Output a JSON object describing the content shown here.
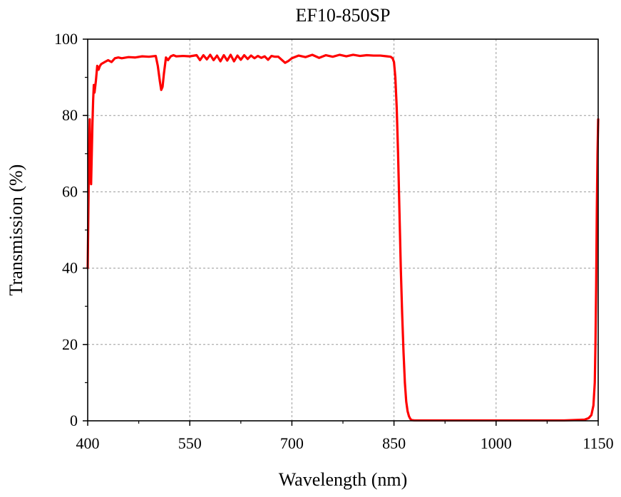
{
  "chart_data": {
    "type": "line",
    "title": "EF10-850SP",
    "xlabel": "Wavelength (nm)",
    "ylabel": "Transmission (%)",
    "xlim": [
      400,
      1150
    ],
    "ylim": [
      0,
      100
    ],
    "xticks": [
      400,
      550,
      700,
      850,
      1000,
      1150
    ],
    "yticks": [
      0,
      20,
      40,
      60,
      80,
      100
    ],
    "grid": true,
    "series": [
      {
        "color": "#ff0000",
        "x": [
          400,
          401,
          402,
          403,
          404,
          405,
          406,
          407,
          408,
          409,
          410,
          412,
          414,
          416,
          418,
          420,
          425,
          430,
          435,
          440,
          445,
          450,
          460,
          470,
          480,
          490,
          500,
          503,
          506,
          508,
          510,
          512,
          515,
          518,
          522,
          526,
          530,
          540,
          550,
          560,
          565,
          570,
          575,
          580,
          585,
          590,
          595,
          600,
          605,
          610,
          615,
          620,
          625,
          630,
          635,
          640,
          645,
          650,
          655,
          660,
          665,
          670,
          675,
          680,
          685,
          690,
          695,
          700,
          710,
          720,
          730,
          740,
          750,
          760,
          770,
          780,
          790,
          800,
          810,
          820,
          830,
          840,
          845,
          848,
          850,
          852,
          854,
          856,
          858,
          860,
          862,
          864,
          866,
          868,
          870,
          872,
          874,
          876,
          880,
          900,
          1000,
          1100,
          1130,
          1136,
          1140,
          1143,
          1145,
          1146,
          1147,
          1148,
          1149,
          1150
        ],
        "y": [
          40,
          55,
          70,
          79,
          65,
          62,
          70,
          78,
          84,
          88,
          86,
          89,
          93,
          92,
          93,
          93.5,
          94,
          94.5,
          94,
          95,
          95.2,
          95,
          95.3,
          95.2,
          95.5,
          95.4,
          95.6,
          93,
          89,
          86.7,
          87.5,
          91,
          95.2,
          94.5,
          95.5,
          95.8,
          95.5,
          95.6,
          95.5,
          95.8,
          94.5,
          95.8,
          94.7,
          95.9,
          94.5,
          95.7,
          94.2,
          95.8,
          94.4,
          95.9,
          94.2,
          95.7,
          94.6,
          95.8,
          94.8,
          95.7,
          95,
          95.6,
          95.1,
          95.5,
          94.6,
          95.6,
          95.4,
          95.4,
          94.6,
          93.8,
          94.3,
          95,
          95.7,
          95.3,
          95.9,
          95.1,
          95.8,
          95.4,
          95.9,
          95.5,
          95.9,
          95.6,
          95.8,
          95.7,
          95.7,
          95.5,
          95.4,
          95,
          94,
          90,
          82,
          70,
          55,
          40,
          28,
          18,
          10,
          5,
          2.5,
          1.2,
          0.5,
          0.2,
          0.1,
          0.1,
          0.1,
          0.1,
          0.3,
          0.7,
          1.5,
          4,
          10,
          20,
          35,
          55,
          70,
          79
        ]
      }
    ]
  }
}
